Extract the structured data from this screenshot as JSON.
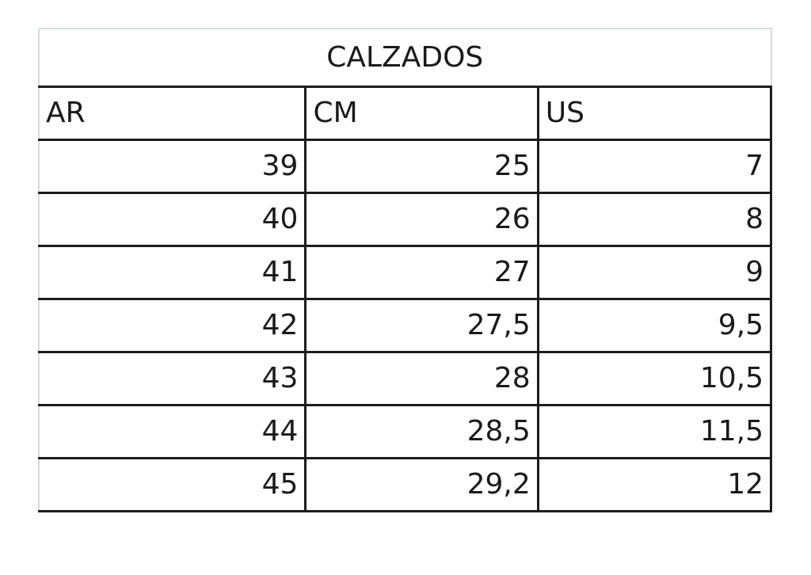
{
  "title": "CALZADOS",
  "columns": [
    "AR",
    "CM",
    "US"
  ],
  "rows": [
    [
      "39",
      "25",
      "7"
    ],
    [
      "40",
      "26",
      "8"
    ],
    [
      "41",
      "27",
      "9"
    ],
    [
      "42",
      "27,5",
      "9,5"
    ],
    [
      "43",
      "28",
      "10,5"
    ],
    [
      "44",
      "28,5",
      "11,5"
    ],
    [
      "45",
      "29,2",
      "12"
    ]
  ]
}
